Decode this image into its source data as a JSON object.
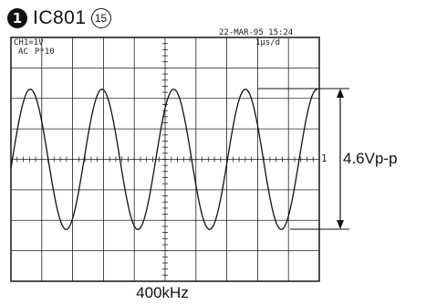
{
  "header": {
    "badge": "1",
    "ic_label": "IC801",
    "pin": "15"
  },
  "scope": {
    "timestamp": "22-MAR-95 15:24",
    "timebase": "1μs/d",
    "channel": "CH1=1V",
    "coupling": "AC",
    "probe": "P*10",
    "trigger_marker": "1"
  },
  "chart_data": {
    "type": "line",
    "title": "",
    "xlabel": "400kHz",
    "ylabel": "",
    "grid": true,
    "x_divisions": 10,
    "y_divisions": 8,
    "series": [
      {
        "waveform": "sine",
        "frequency_hz": 400000,
        "amplitude_vpp": 4.6,
        "cycles_visible": 4
      }
    ],
    "annotations": [
      {
        "text": "4.6Vp-p"
      }
    ]
  },
  "colors": {
    "trace": "#111111",
    "grid": "#222222",
    "background": "#ffffff"
  }
}
